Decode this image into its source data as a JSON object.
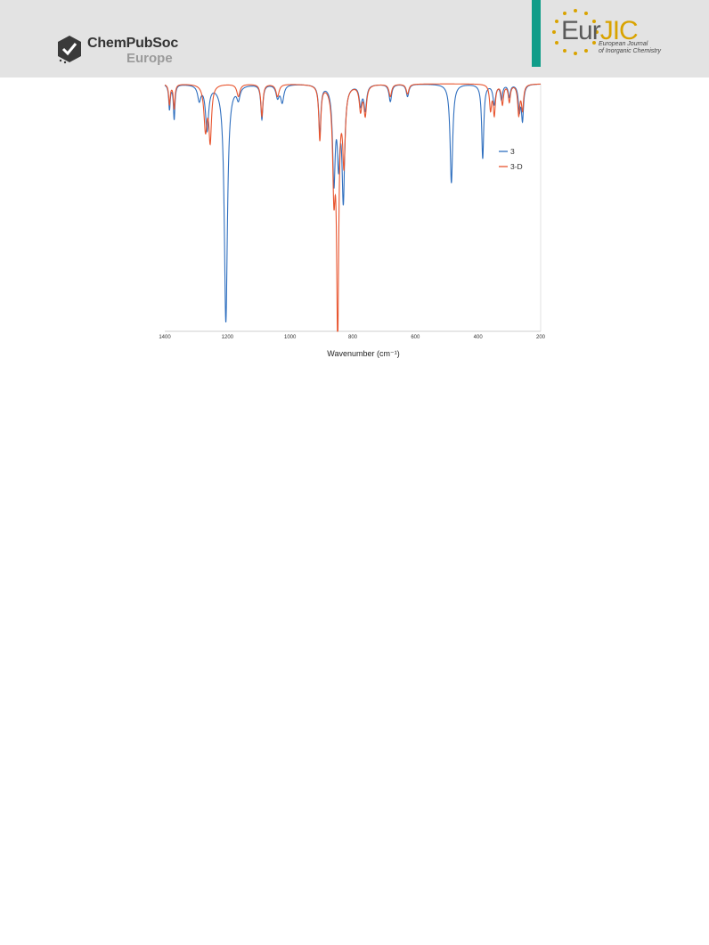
{
  "header": {
    "publisher_name": "ChemPubSoc",
    "publisher_region": "Europe",
    "journal_abbrev_prefix": "Eur",
    "journal_abbrev_suffix": "JIC",
    "journal_full_line1": "European Journal",
    "journal_full_line2": "of Inorganic Chemistry",
    "band_color": "#e3e3e3",
    "accent_color": "#0f9d89",
    "journal_color": "#d9a300"
  },
  "chart_data": {
    "type": "line",
    "xlabel": "Wavenumber (cm⁻¹)",
    "xlim": [
      1400,
      200
    ],
    "x_ticks": [
      1400,
      1200,
      1000,
      800,
      600,
      400,
      200
    ],
    "legend_position": "right",
    "grid": false,
    "series": [
      {
        "name": "3",
        "color": "#2f6fbf",
        "baseline": 100,
        "peaks": [
          {
            "x": 1385,
            "depth": 10,
            "width": 3
          },
          {
            "x": 1370,
            "depth": 14,
            "width": 3
          },
          {
            "x": 1290,
            "depth": 6,
            "width": 6
          },
          {
            "x": 1265,
            "depth": 18,
            "width": 6
          },
          {
            "x": 1205,
            "depth": 96,
            "width": 6
          },
          {
            "x": 1165,
            "depth": 5,
            "width": 6
          },
          {
            "x": 1090,
            "depth": 14,
            "width": 4
          },
          {
            "x": 1040,
            "depth": 5,
            "width": 6
          },
          {
            "x": 1025,
            "depth": 7,
            "width": 6
          },
          {
            "x": 905,
            "depth": 20,
            "width": 4
          },
          {
            "x": 860,
            "depth": 38,
            "width": 5
          },
          {
            "x": 845,
            "depth": 28,
            "width": 5
          },
          {
            "x": 830,
            "depth": 45,
            "width": 5
          },
          {
            "x": 775,
            "depth": 8,
            "width": 5
          },
          {
            "x": 760,
            "depth": 10,
            "width": 5
          },
          {
            "x": 680,
            "depth": 7,
            "width": 5
          },
          {
            "x": 625,
            "depth": 5,
            "width": 5
          },
          {
            "x": 485,
            "depth": 40,
            "width": 5
          },
          {
            "x": 385,
            "depth": 30,
            "width": 4
          },
          {
            "x": 348,
            "depth": 8,
            "width": 5
          },
          {
            "x": 325,
            "depth": 6,
            "width": 4
          },
          {
            "x": 300,
            "depth": 5,
            "width": 4
          },
          {
            "x": 268,
            "depth": 10,
            "width": 4
          },
          {
            "x": 258,
            "depth": 14,
            "width": 4
          }
        ]
      },
      {
        "name": "3-D",
        "color": "#e8552f",
        "baseline": 100,
        "peaks": [
          {
            "x": 1385,
            "depth": 8,
            "width": 3
          },
          {
            "x": 1370,
            "depth": 10,
            "width": 3
          },
          {
            "x": 1270,
            "depth": 18,
            "width": 6
          },
          {
            "x": 1255,
            "depth": 22,
            "width": 5
          },
          {
            "x": 1165,
            "depth": 5,
            "width": 6
          },
          {
            "x": 1090,
            "depth": 13,
            "width": 4
          },
          {
            "x": 1040,
            "depth": 5,
            "width": 6
          },
          {
            "x": 905,
            "depth": 22,
            "width": 4
          },
          {
            "x": 860,
            "depth": 40,
            "width": 5
          },
          {
            "x": 848,
            "depth": 98,
            "width": 4
          },
          {
            "x": 828,
            "depth": 30,
            "width": 5
          },
          {
            "x": 775,
            "depth": 10,
            "width": 5
          },
          {
            "x": 760,
            "depth": 12,
            "width": 5
          },
          {
            "x": 680,
            "depth": 5,
            "width": 5
          },
          {
            "x": 625,
            "depth": 4,
            "width": 5
          },
          {
            "x": 360,
            "depth": 10,
            "width": 4
          },
          {
            "x": 348,
            "depth": 12,
            "width": 4
          },
          {
            "x": 322,
            "depth": 8,
            "width": 4
          },
          {
            "x": 300,
            "depth": 7,
            "width": 4
          },
          {
            "x": 270,
            "depth": 12,
            "width": 4
          },
          {
            "x": 258,
            "depth": 10,
            "width": 4
          }
        ]
      }
    ]
  }
}
